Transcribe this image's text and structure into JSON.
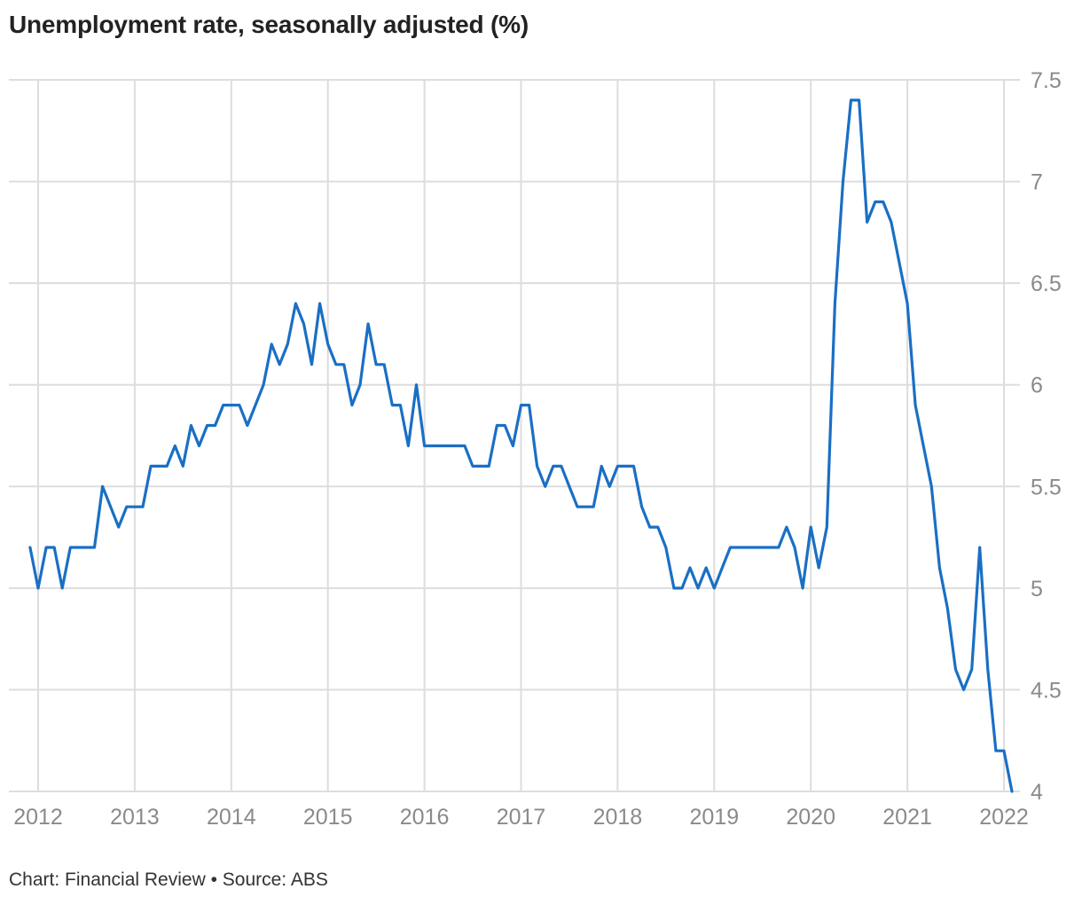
{
  "chart_data": {
    "type": "line",
    "title": "Unemployment rate, seasonally adjusted (%)",
    "source": "Chart: Financial Review • Source: ABS",
    "x_start": 2011.9167,
    "x_step": 0.08333,
    "xlim": [
      2011.7,
      2022.2
    ],
    "ylim": [
      4,
      7.5
    ],
    "x_ticks": [
      "2012",
      "2013",
      "2014",
      "2015",
      "2016",
      "2017",
      "2018",
      "2019",
      "2020",
      "2021",
      "2022"
    ],
    "y_ticks": [
      "4",
      "4.5",
      "5",
      "5.5",
      "6",
      "6.5",
      "7",
      "7.5"
    ],
    "grid": true,
    "colors": {
      "line": "#1a6fc4",
      "grid": "#dddddd",
      "tick_text": "#8a8a8a"
    },
    "series": [
      {
        "values": [
          5.2,
          5.0,
          5.2,
          5.2,
          5.0,
          5.2,
          5.2,
          5.2,
          5.2,
          5.5,
          5.4,
          5.3,
          5.4,
          5.4,
          5.4,
          5.6,
          5.6,
          5.6,
          5.7,
          5.6,
          5.8,
          5.7,
          5.8,
          5.8,
          5.9,
          5.9,
          5.9,
          5.8,
          5.9,
          6.0,
          6.2,
          6.1,
          6.2,
          6.4,
          6.3,
          6.1,
          6.4,
          6.2,
          6.1,
          6.1,
          5.9,
          6.0,
          6.3,
          6.1,
          6.1,
          5.9,
          5.9,
          5.7,
          6.0,
          5.7,
          5.7,
          5.7,
          5.7,
          5.7,
          5.7,
          5.6,
          5.6,
          5.6,
          5.8,
          5.8,
          5.7,
          5.9,
          5.9,
          5.6,
          5.5,
          5.6,
          5.6,
          5.5,
          5.4,
          5.4,
          5.4,
          5.6,
          5.5,
          5.6,
          5.6,
          5.6,
          5.4,
          5.3,
          5.3,
          5.2,
          5.0,
          5.0,
          5.1,
          5.0,
          5.1,
          5.0,
          5.1,
          5.2,
          5.2,
          5.2,
          5.2,
          5.2,
          5.2,
          5.2,
          5.3,
          5.2,
          5.0,
          5.3,
          5.1,
          5.3,
          6.4,
          7.0,
          7.4,
          7.4,
          6.8,
          6.9,
          6.9,
          6.8,
          6.6,
          6.4,
          5.9,
          5.7,
          5.5,
          5.1,
          4.9,
          4.6,
          4.5,
          4.6,
          5.2,
          4.6,
          4.2,
          4.2,
          4.0
        ]
      }
    ]
  }
}
